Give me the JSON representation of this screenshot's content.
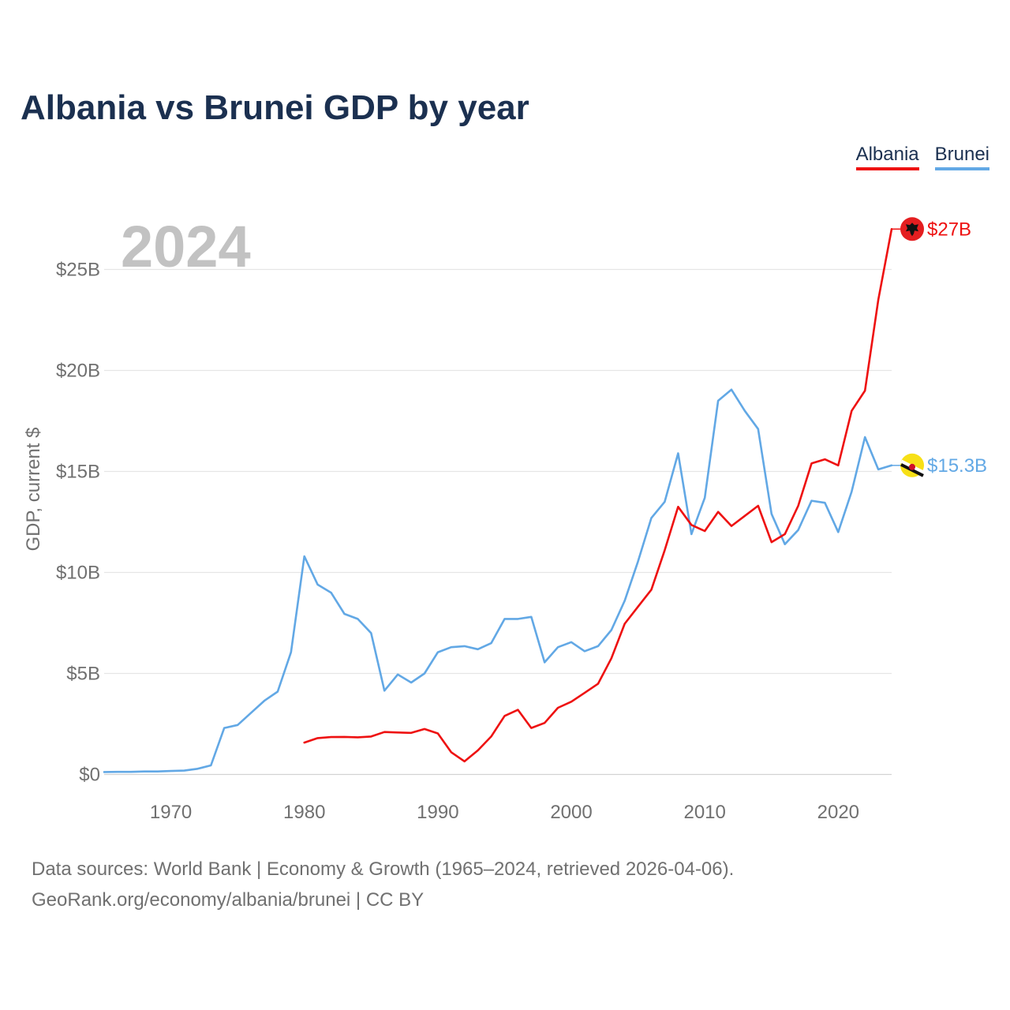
{
  "title": "Albania vs Brunei GDP by year",
  "legend": {
    "albania": "Albania",
    "brunei": "Brunei"
  },
  "colors": {
    "albania": "#ee1111",
    "brunei": "#62a8e5",
    "title": "#1b3050"
  },
  "year_watermark": "2024",
  "end_labels": {
    "albania": "$27B",
    "brunei": "$15.3B"
  },
  "footer": {
    "line1": "Data sources: World Bank | Economy & Growth (1965–2024, retrieved 2026-04-06).",
    "line2": "GeoRank.org/economy/albania/brunei | CC BY"
  },
  "chart_data": {
    "type": "line",
    "title": "Albania vs Brunei GDP by year",
    "xlabel": "",
    "ylabel": "GDP, current $",
    "xlim": [
      1965,
      2024
    ],
    "ylim": [
      0,
      27
    ],
    "y_ticks": [
      0,
      5,
      10,
      15,
      20,
      25
    ],
    "y_tick_labels": [
      "$0",
      "$5B",
      "$10B",
      "$15B",
      "$20B",
      "$25B"
    ],
    "x_ticks": [
      1970,
      1980,
      1990,
      2000,
      2010,
      2020
    ],
    "x_tick_labels": [
      "1970",
      "1980",
      "1990",
      "2000",
      "2010",
      "2020"
    ],
    "grid": true,
    "legend_position": "top-right",
    "series": [
      {
        "name": "Albania",
        "color": "#ee1111",
        "x": [
          1980,
          1981,
          1982,
          1983,
          1984,
          1985,
          1986,
          1987,
          1988,
          1989,
          1990,
          1991,
          1992,
          1993,
          1994,
          1995,
          1996,
          1997,
          1998,
          1999,
          2000,
          2001,
          2002,
          2003,
          2004,
          2005,
          2006,
          2007,
          2008,
          2009,
          2010,
          2011,
          2012,
          2013,
          2014,
          2015,
          2016,
          2017,
          2018,
          2019,
          2020,
          2021,
          2022,
          2023,
          2024
        ],
        "values": [
          1.58,
          1.8,
          1.85,
          1.86,
          1.84,
          1.88,
          2.1,
          2.08,
          2.06,
          2.25,
          2.03,
          1.1,
          0.65,
          1.19,
          1.88,
          2.9,
          3.2,
          2.3,
          2.55,
          3.3,
          3.6,
          4.04,
          4.49,
          5.75,
          7.46,
          8.31,
          9.15,
          11.1,
          13.25,
          12.35,
          12.05,
          13.0,
          12.3,
          12.8,
          13.3,
          11.5,
          11.9,
          13.3,
          15.4,
          15.6,
          15.3,
          18.0,
          19.0,
          23.5,
          27.0
        ]
      },
      {
        "name": "Brunei",
        "color": "#62a8e5",
        "x": [
          1965,
          1966,
          1967,
          1968,
          1969,
          1970,
          1971,
          1972,
          1973,
          1974,
          1975,
          1976,
          1977,
          1978,
          1979,
          1980,
          1981,
          1982,
          1983,
          1984,
          1985,
          1986,
          1987,
          1988,
          1989,
          1990,
          1991,
          1992,
          1993,
          1994,
          1995,
          1996,
          1997,
          1998,
          1999,
          2000,
          2001,
          2002,
          2003,
          2004,
          2005,
          2006,
          2007,
          2008,
          2009,
          2010,
          2011,
          2012,
          2013,
          2014,
          2015,
          2016,
          2017,
          2018,
          2019,
          2020,
          2021,
          2022,
          2023,
          2024
        ],
        "values": [
          0.12,
          0.13,
          0.13,
          0.15,
          0.15,
          0.17,
          0.19,
          0.28,
          0.45,
          2.3,
          2.45,
          3.05,
          3.65,
          4.1,
          6.05,
          10.8,
          9.4,
          9.0,
          7.95,
          7.7,
          7.0,
          4.15,
          4.95,
          4.55,
          5.0,
          6.05,
          6.3,
          6.35,
          6.2,
          6.5,
          7.7,
          7.7,
          7.8,
          5.55,
          6.3,
          6.55,
          6.1,
          6.35,
          7.15,
          8.6,
          10.55,
          12.7,
          13.5,
          15.9,
          11.9,
          13.7,
          18.5,
          19.05,
          18.0,
          17.1,
          12.9,
          11.4,
          12.1,
          13.55,
          13.45,
          12.0,
          14.0,
          16.7,
          15.1,
          15.3
        ]
      }
    ]
  }
}
